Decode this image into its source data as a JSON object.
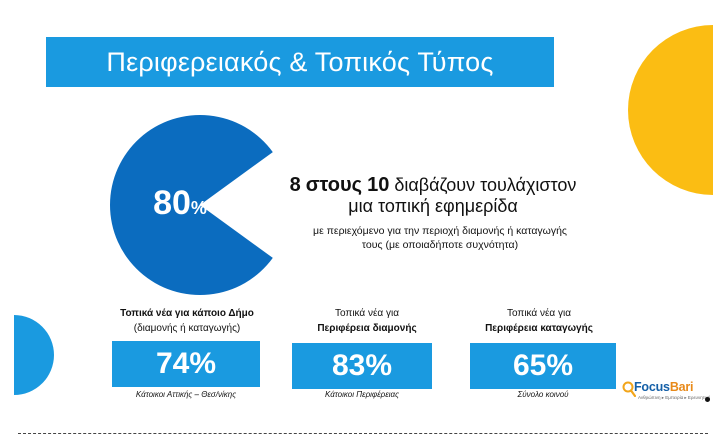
{
  "title": "Περιφερειακός & Τοπικός Τύπος",
  "chart_data": {
    "type": "pie",
    "values": [
      80,
      20
    ],
    "value_label": "80",
    "unit": "%",
    "colors": [
      "#0b6cbf",
      "#ffffff"
    ]
  },
  "headline": {
    "number_a": "8",
    "text_a": "στους",
    "number_b": "10",
    "text_b": "διαβάζουν τουλάχιστον",
    "line2": "μια τοπική εφημερίδα"
  },
  "subline": {
    "line1": "με περιεχόμενο για την περιοχή διαμονής ή καταγωγής",
    "line2": "τους (με οποιαδήποτε συχνότητα)"
  },
  "stats": [
    {
      "caption_line1": "Τοπικά νέα για κάποιο Δήμο",
      "caption_line2": "(διαμονής ή καταγωγής)",
      "value": "74%",
      "source": "Κάτοικοι Αττικής – Θεσ/νίκης"
    },
    {
      "caption_line1": "Τοπικά νέα για",
      "caption_line2": "Περιφέρεια διαμονής",
      "value": "83%",
      "source": "Κάτοικοι Περιφέρειας"
    },
    {
      "caption_line1": "Τοπικά νέα για",
      "caption_line2": "Περιφέρεια καταγωγής",
      "value": "65%",
      "source": "Σύνολο κοινού"
    }
  ],
  "logo": {
    "name_a": "Focus",
    "name_b": "Bari",
    "tagline": "Ανθρώπινη ▸ Εμπειρία ▸ Ερευνητική"
  },
  "colors": {
    "primary_blue": "#1a9ae0",
    "pie_blue": "#0b6cbf",
    "accent_yellow": "#fbbd13",
    "text": "#111111"
  }
}
